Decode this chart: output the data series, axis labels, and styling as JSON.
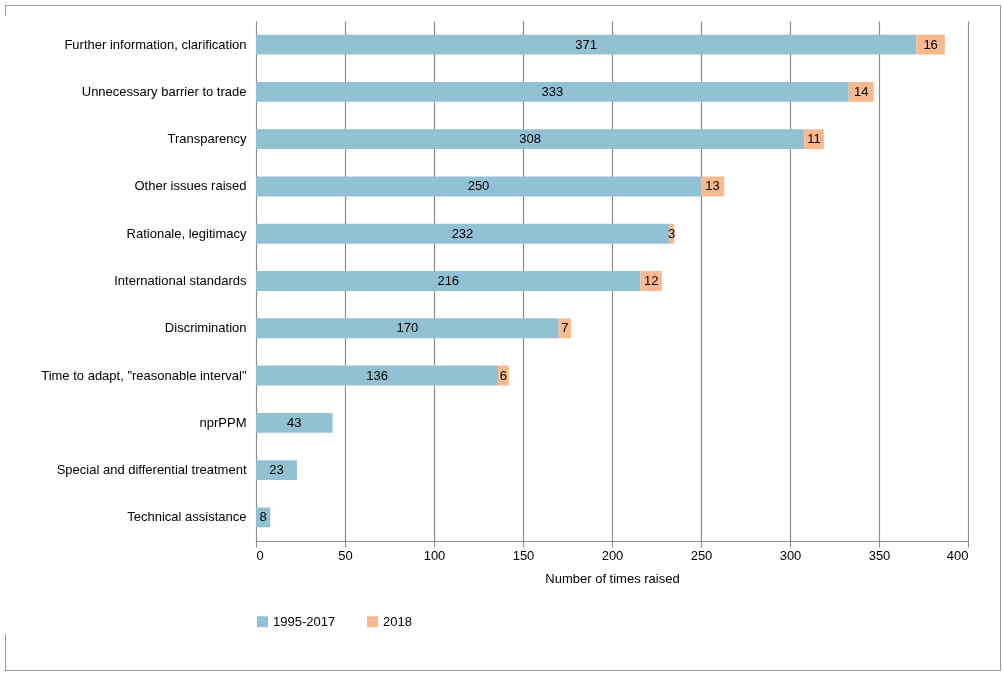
{
  "chart_data": {
    "type": "bar",
    "orientation": "horizontal",
    "stacked": true,
    "xlabel": "Number of times raised",
    "categories": [
      "Further information, clarification",
      "Unnecessary barrier to trade",
      "Transparency",
      "Other issues raised",
      "Rationale, legitimacy",
      "International standards",
      "Discrimination",
      "Time to adapt, \"reasonable interval\"",
      "nprPPM",
      "Special and differential treatment",
      "Technical assistance"
    ],
    "series": [
      {
        "name": "1995-2017",
        "color": "#92c1d4",
        "values": [
          371,
          333,
          308,
          250,
          232,
          216,
          170,
          136,
          43,
          23,
          8
        ]
      },
      {
        "name": "2018",
        "color": "#f8b98e",
        "values": [
          16,
          14,
          11,
          13,
          3,
          12,
          7,
          6,
          null,
          null,
          null
        ]
      }
    ],
    "xlim": [
      0,
      400
    ],
    "xticks": [
      0,
      50,
      100,
      150,
      200,
      250,
      300,
      350,
      400
    ],
    "grid": "x",
    "legend": "bottom",
    "data_labels": true
  }
}
